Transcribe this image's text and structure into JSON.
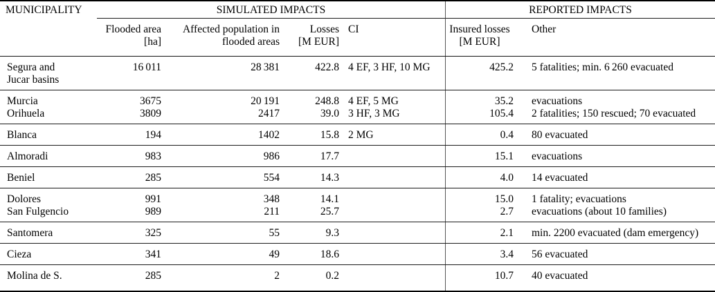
{
  "header": {
    "municipality": "MUNICIPALITY",
    "simulated_group": "SIMULATED IMPACTS",
    "reported_group": "REPORTED IMPACTS",
    "flooded_area_l1": "Flooded area",
    "flooded_area_l2": "[ha]",
    "affected_l1": "Affected population in",
    "affected_l2": "flooded areas",
    "losses_l1": "Losses",
    "losses_l2": "[M EUR]",
    "ci": "CI",
    "insured_l1": "Insured losses",
    "insured_l2": "[M EUR]",
    "other": "Other"
  },
  "rows": [
    {
      "entries": [
        {
          "name": "Segura and",
          "flooded": "16 011",
          "affected": "28 381",
          "losses": "422.8",
          "ci": "4 EF, 3 HF, 10 MG",
          "insured": "425.2",
          "other": "5 fatalities; min. 6 260 evacuated"
        },
        {
          "name": "Jucar basins"
        }
      ]
    },
    {
      "entries": [
        {
          "name": "Murcia",
          "flooded": "3675",
          "affected": "20 191",
          "losses": "248.8",
          "ci": "4 EF, 5 MG",
          "insured": "35.2",
          "other": "evacuations"
        },
        {
          "name": "Orihuela",
          "flooded": "3809",
          "affected": "2417",
          "losses": "39.0",
          "ci": "3 HF, 3 MG",
          "insured": "105.4",
          "other": "2 fatalities; 150 rescued; 70 evacuated"
        }
      ]
    },
    {
      "entries": [
        {
          "name": "Blanca",
          "flooded": "194",
          "affected": "1402",
          "losses": "15.8",
          "ci": "2 MG",
          "insured": "0.4",
          "other": "80 evacuated"
        }
      ]
    },
    {
      "entries": [
        {
          "name": "Almoradi",
          "flooded": "983",
          "affected": "986",
          "losses": "17.7",
          "insured": "15.1",
          "other": "evacuations"
        }
      ]
    },
    {
      "entries": [
        {
          "name": "Beniel",
          "flooded": "285",
          "affected": "554",
          "losses": "14.3",
          "insured": "4.0",
          "other": "14 evacuated"
        }
      ]
    },
    {
      "entries": [
        {
          "name": "Dolores",
          "flooded": "991",
          "affected": "348",
          "losses": "14.1",
          "insured": "15.0",
          "other": "1 fatality; evacuations"
        },
        {
          "name": "San Fulgencio",
          "flooded": "989",
          "affected": "211",
          "losses": "25.7",
          "insured": "2.7",
          "other": "evacuations (about 10 families)"
        }
      ]
    },
    {
      "entries": [
        {
          "name": "Santomera",
          "flooded": "325",
          "affected": "55",
          "losses": "9.3",
          "insured": "2.1",
          "other": "min. 2200 evacuated (dam emergency)"
        }
      ]
    },
    {
      "entries": [
        {
          "name": "Cieza",
          "flooded": "341",
          "affected": "49",
          "losses": "18.6",
          "insured": "3.4",
          "other": "56 evacuated"
        }
      ]
    },
    {
      "entries": [
        {
          "name": "Molina de S.",
          "flooded": "285",
          "affected": "2",
          "losses": "0.2",
          "insured": "10.7",
          "other": "40 evacuated"
        }
      ]
    }
  ]
}
